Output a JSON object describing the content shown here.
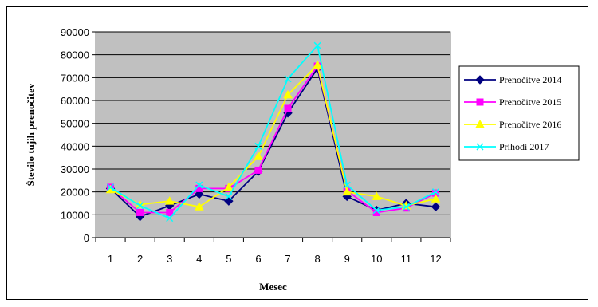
{
  "chart_data": {
    "type": "line",
    "title": "",
    "xlabel": "Mesec",
    "ylabel": "Število tujih prenočitev",
    "categories": [
      "1",
      "2",
      "3",
      "4",
      "5",
      "6",
      "7",
      "8",
      "9",
      "10",
      "11",
      "12"
    ],
    "ylim": [
      0,
      90000
    ],
    "yticks": [
      "0",
      "10000",
      "20000",
      "30000",
      "40000",
      "50000",
      "60000",
      "70000",
      "80000",
      "90000"
    ],
    "grid": "horizontal",
    "legend_position": "right",
    "plot_background": "#c0c0c0",
    "series": [
      {
        "name": "Prenočitve 2014",
        "color": "#000080",
        "marker": "diamond",
        "values": [
          21500,
          9200,
          14000,
          19000,
          16000,
          29000,
          54500,
          74000,
          18000,
          12000,
          15000,
          13500
        ]
      },
      {
        "name": "Prenočitve 2015",
        "color": "#ff00ff",
        "marker": "square",
        "values": [
          22000,
          11000,
          11000,
          21500,
          21500,
          29500,
          56500,
          75000,
          20500,
          11000,
          13000,
          19500
        ]
      },
      {
        "name": "Prenočitve 2016",
        "color": "#ffff00",
        "marker": "triangle",
        "values": [
          21000,
          14500,
          16000,
          13500,
          22000,
          35500,
          62500,
          75500,
          20000,
          18000,
          14000,
          17000
        ]
      },
      {
        "name": "Prihodi 2017",
        "color": "#00ffff",
        "marker": "x",
        "values": [
          22000,
          14000,
          8500,
          23000,
          18000,
          40000,
          69500,
          84000,
          23000,
          12000,
          13500,
          20000
        ]
      }
    ]
  }
}
